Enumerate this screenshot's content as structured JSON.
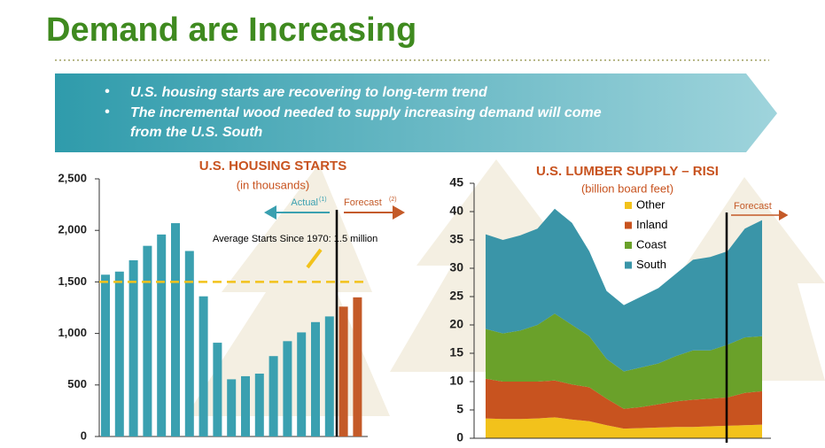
{
  "header": {
    "title": "Demand are Increasing"
  },
  "bullets": [
    "U.S. housing starts are recovering to long-term trend",
    "The incremental wood needed to supply increasing demand will come",
    "from the U.S. South"
  ],
  "chart_data": [
    {
      "type": "bar",
      "title": "U.S. HOUSING STARTS",
      "subtitle": "(in thousands)",
      "categories": [
        null,
        null,
        null,
        null,
        null,
        null,
        null,
        null,
        null,
        null,
        null,
        null,
        null,
        null,
        null,
        null,
        null,
        null,
        null
      ],
      "values": [
        1570,
        1600,
        1710,
        1850,
        1960,
        2070,
        1800,
        1360,
        910,
        555,
        585,
        610,
        780,
        925,
        1010,
        1110,
        1165,
        1260,
        1350
      ],
      "colors": [
        "#3aa0b0",
        "#3aa0b0",
        "#3aa0b0",
        "#3aa0b0",
        "#3aa0b0",
        "#3aa0b0",
        "#3aa0b0",
        "#3aa0b0",
        "#3aa0b0",
        "#3aa0b0",
        "#3aa0b0",
        "#3aa0b0",
        "#3aa0b0",
        "#3aa0b0",
        "#3aa0b0",
        "#3aa0b0",
        "#3aa0b0",
        "#c45a28",
        "#c45a28"
      ],
      "ylim": [
        0,
        2500
      ],
      "yticks": [
        0,
        500,
        {
          "value": 1000,
          "label": "1,000"
        },
        {
          "value": 1500,
          "label": "1,500"
        },
        {
          "value": 2000,
          "label": "2,000"
        },
        {
          "value": 2500,
          "label": "2,500"
        }
      ],
      "reference_line": 1500,
      "annotations": {
        "average": "Average Starts Since 1970: 1.5 million",
        "actual": "Actual",
        "actual_note": "(1)",
        "forecast": "Forecast",
        "forecast_note": "(2)"
      }
    },
    {
      "type": "stacked_area",
      "title": "U.S. LUMBER SUPPLY – RISI",
      "subtitle": "(billion board feet)",
      "categories": [
        null,
        null,
        null,
        null,
        null,
        null,
        null,
        null,
        null,
        null,
        null,
        null,
        null,
        null,
        null,
        null,
        null
      ],
      "series": [
        {
          "name": "Other",
          "color": "#f2c21b",
          "values": [
            3.5,
            3.4,
            3.4,
            3.5,
            3.7,
            3.3,
            3,
            2.3,
            1.7,
            1.8,
            1.9,
            2,
            2,
            2.1,
            2.2,
            2.3,
            2.4
          ]
        },
        {
          "name": "Inland",
          "color": "#c8531f",
          "values": [
            7,
            6.6,
            6.6,
            6.5,
            6.5,
            6.2,
            6,
            4.7,
            3.5,
            3.7,
            4.1,
            4.5,
            4.8,
            4.9,
            5,
            5.7,
            5.9
          ]
        },
        {
          "name": "Coast",
          "color": "#6aa12a",
          "values": [
            8.8,
            8.5,
            9,
            10,
            11.8,
            10.5,
            9,
            7,
            6.6,
            7,
            7.2,
            8,
            8.7,
            8.5,
            9.3,
            9.8,
            9.7
          ]
        },
        {
          "name": "South",
          "color": "#3a95a8",
          "values": [
            16.7,
            16.5,
            16.8,
            17,
            18.5,
            18,
            15,
            12,
            11.7,
            12.5,
            13.3,
            14.5,
            16,
            16.5,
            16.5,
            19.2,
            20.5
          ]
        }
      ],
      "ylim": [
        0,
        45
      ],
      "yticks": [
        0,
        5,
        10,
        15,
        20,
        25,
        30,
        35,
        40,
        45
      ],
      "annotations": {
        "forecast": "Forecast"
      }
    }
  ]
}
